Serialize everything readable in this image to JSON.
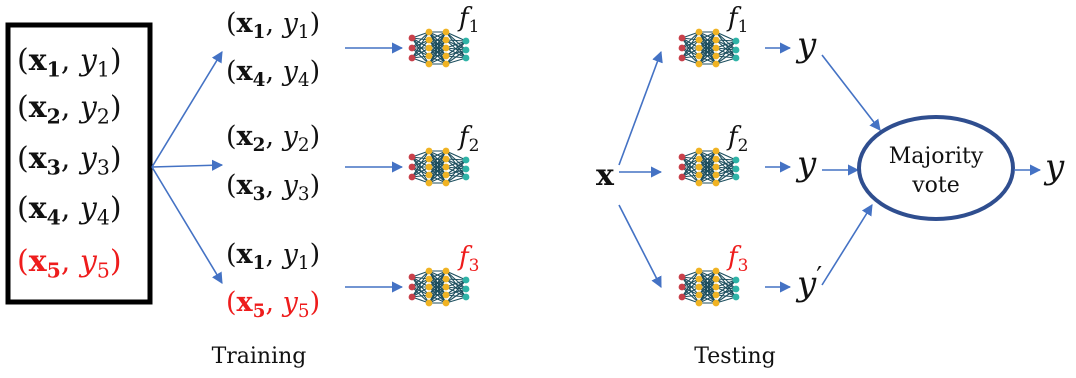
{
  "colors": {
    "text": "#111111",
    "highlight": "#ee1c1c",
    "arrow": "#4472c4",
    "box": "#000000",
    "vote_ring": "#2f4e8f",
    "node_red": "#c8414b",
    "node_yellow": "#f0b323",
    "node_teal": "#2fb3a7",
    "edge": "#1c4e5e"
  },
  "dataset": [
    {
      "x": "x",
      "sub": "1",
      "y": "y",
      "ysub": "1",
      "highlight": false
    },
    {
      "x": "x",
      "sub": "2",
      "y": "y",
      "ysub": "2",
      "highlight": false
    },
    {
      "x": "x",
      "sub": "3",
      "y": "y",
      "ysub": "3",
      "highlight": false
    },
    {
      "x": "x",
      "sub": "4",
      "y": "y",
      "ysub": "4",
      "highlight": false
    },
    {
      "x": "x",
      "sub": "5",
      "y": "y",
      "ysub": "5",
      "highlight": true
    }
  ],
  "bags": [
    {
      "samples": [
        {
          "sub": "1",
          "highlight": false
        },
        {
          "sub": "4",
          "highlight": false
        }
      ],
      "model": "f",
      "model_sub": "1",
      "model_highlight": false
    },
    {
      "samples": [
        {
          "sub": "2",
          "highlight": false
        },
        {
          "sub": "3",
          "highlight": false
        }
      ],
      "model": "f",
      "model_sub": "2",
      "model_highlight": false
    },
    {
      "samples": [
        {
          "sub": "1",
          "highlight": false
        },
        {
          "sub": "5",
          "highlight": true
        }
      ],
      "model": "f",
      "model_sub": "3",
      "model_highlight": true
    }
  ],
  "testing": {
    "input": "x",
    "models": [
      {
        "name": "f",
        "sub": "1",
        "highlight": false,
        "output": "y",
        "prime": false
      },
      {
        "name": "f",
        "sub": "2",
        "highlight": false,
        "output": "y",
        "prime": false
      },
      {
        "name": "f",
        "sub": "3",
        "highlight": true,
        "output": "y",
        "prime": true
      }
    ],
    "vote_line1": "Majority",
    "vote_line2": "vote",
    "final_output": "y"
  },
  "labels": {
    "training": "Training",
    "testing": "Testing"
  }
}
